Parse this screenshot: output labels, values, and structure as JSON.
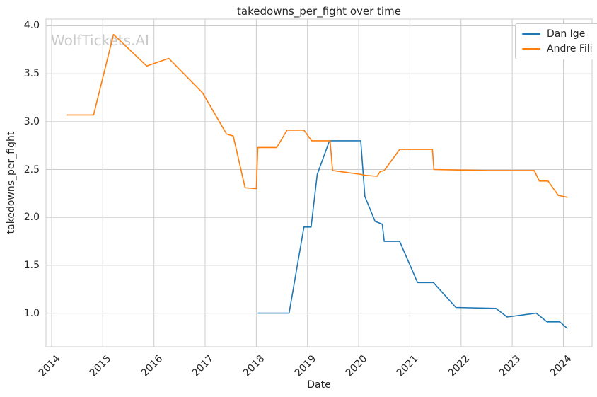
{
  "chart_data": {
    "type": "line",
    "title": "takedowns_per_fight over time",
    "watermark": "WolfTickets.AI",
    "xlabel": "Date",
    "ylabel": "takedowns_per_fight",
    "xlim": [
      2013.89,
      2024.56
    ],
    "ylim": [
      0.65,
      4.07
    ],
    "x_ticks": [
      2014,
      2015,
      2016,
      2017,
      2018,
      2019,
      2020,
      2021,
      2022,
      2023,
      2024
    ],
    "x_tick_labels": [
      "2014",
      "2015",
      "2016",
      "2017",
      "2018",
      "2019",
      "2020",
      "2021",
      "2022",
      "2023",
      "2024"
    ],
    "y_ticks": [
      1.0,
      1.5,
      2.0,
      2.5,
      3.0,
      3.5,
      4.0
    ],
    "y_tick_labels": [
      "1.0",
      "1.5",
      "2.0",
      "2.5",
      "3.0",
      "3.5",
      "4.0"
    ],
    "grid": true,
    "legend_position": "upper right",
    "background_color": "#ffffff",
    "grid_color": "#cccccc",
    "text_color": "#262626",
    "watermark_color": "#c9c9c9",
    "series": [
      {
        "name": "Dan Ige",
        "color": "#1f77b4",
        "points": [
          [
            2018.03,
            1.0
          ],
          [
            2018.64,
            1.0
          ],
          [
            2018.93,
            1.9
          ],
          [
            2019.07,
            1.9
          ],
          [
            2019.19,
            2.45
          ],
          [
            2019.43,
            2.8
          ],
          [
            2020.04,
            2.8
          ],
          [
            2020.12,
            2.22
          ],
          [
            2020.32,
            1.96
          ],
          [
            2020.46,
            1.93
          ],
          [
            2020.5,
            1.75
          ],
          [
            2020.8,
            1.75
          ],
          [
            2021.15,
            1.32
          ],
          [
            2021.46,
            1.32
          ],
          [
            2021.9,
            1.06
          ],
          [
            2022.68,
            1.05
          ],
          [
            2022.9,
            0.96
          ],
          [
            2023.47,
            1.0
          ],
          [
            2023.68,
            0.91
          ],
          [
            2023.93,
            0.91
          ],
          [
            2024.08,
            0.84
          ]
        ]
      },
      {
        "name": "Andre Fili",
        "color": "#ff7f0e",
        "points": [
          [
            2014.3,
            3.07
          ],
          [
            2014.82,
            3.07
          ],
          [
            2015.21,
            3.91
          ],
          [
            2015.86,
            3.58
          ],
          [
            2016.29,
            3.66
          ],
          [
            2016.95,
            3.3
          ],
          [
            2017.42,
            2.87
          ],
          [
            2017.55,
            2.85
          ],
          [
            2017.78,
            2.31
          ],
          [
            2018.0,
            2.3
          ],
          [
            2018.03,
            2.73
          ],
          [
            2018.4,
            2.73
          ],
          [
            2018.6,
            2.91
          ],
          [
            2018.93,
            2.91
          ],
          [
            2019.08,
            2.8
          ],
          [
            2019.44,
            2.8
          ],
          [
            2019.49,
            2.49
          ],
          [
            2020.04,
            2.45
          ],
          [
            2020.12,
            2.44
          ],
          [
            2020.36,
            2.43
          ],
          [
            2020.42,
            2.48
          ],
          [
            2020.5,
            2.49
          ],
          [
            2020.8,
            2.71
          ],
          [
            2021.44,
            2.71
          ],
          [
            2021.47,
            2.5
          ],
          [
            2022.5,
            2.49
          ],
          [
            2023.43,
            2.49
          ],
          [
            2023.53,
            2.38
          ],
          [
            2023.7,
            2.38
          ],
          [
            2023.9,
            2.23
          ],
          [
            2024.08,
            2.21
          ]
        ]
      }
    ]
  }
}
